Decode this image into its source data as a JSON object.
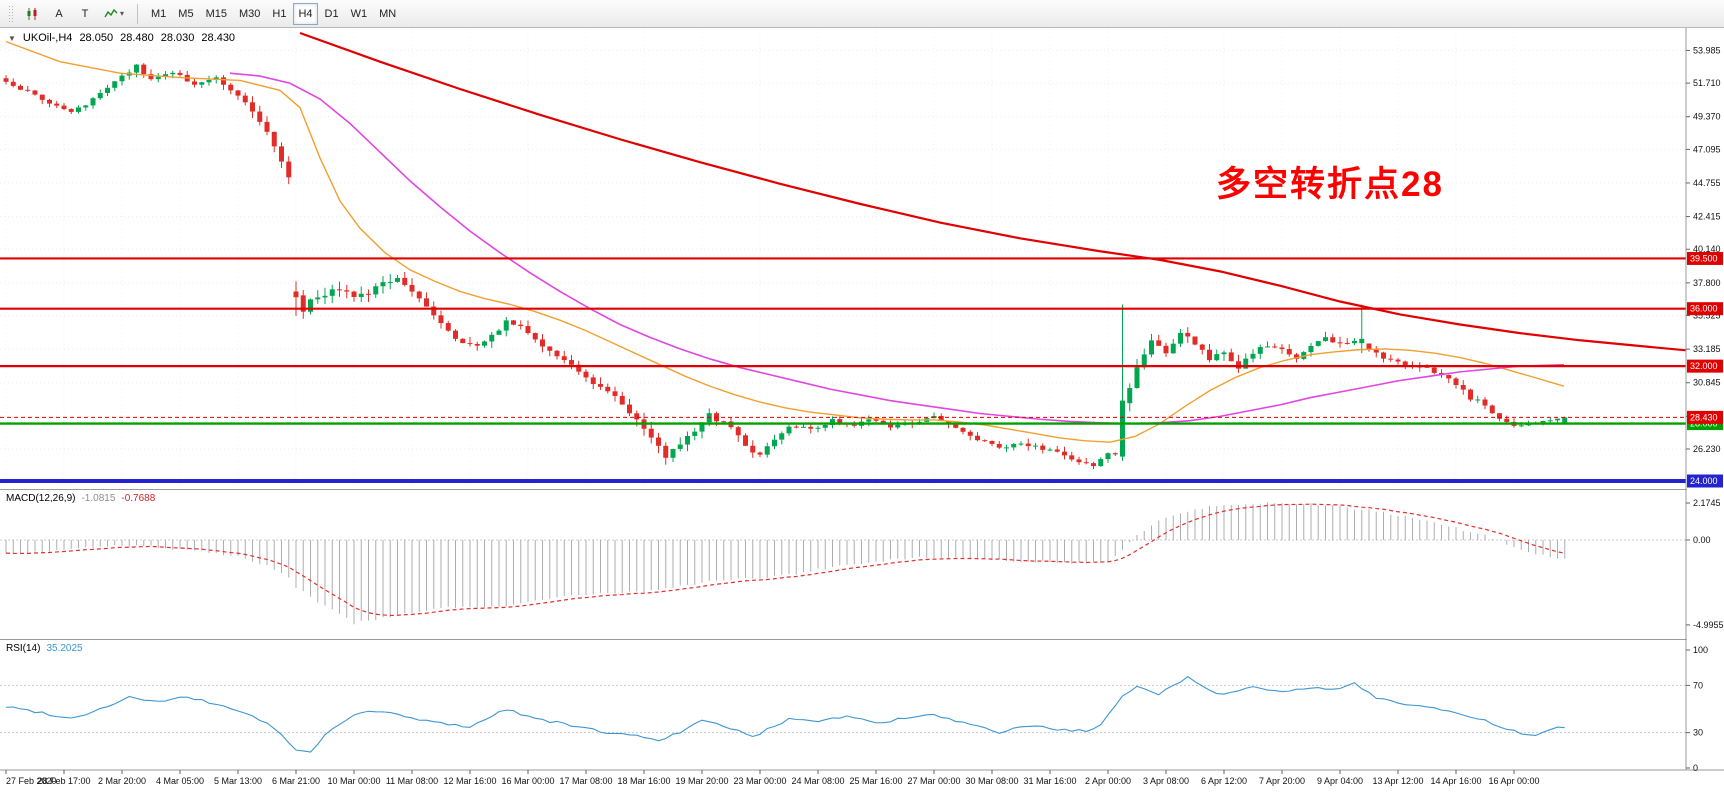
{
  "colors": {
    "candle_up": "#00A650",
    "candle_down": "#E22C28",
    "ma_fast": "#F0A030",
    "ma_mid": "#E146E1",
    "ma_long": "#E10000",
    "hline_red": "#E10000",
    "hline_green": "#00A000",
    "hline_blue": "#2323CF",
    "macd_hist": "#ADADAD",
    "macd_signal": "#E03030",
    "rsi": "#3D96D2",
    "annotation": "#FF0000"
  },
  "icons": {
    "collapse_arrow": "▼",
    "dropdown_caret": "▾"
  },
  "toolbar": {
    "buttons": [
      {
        "label": "A"
      },
      {
        "label": "T"
      }
    ],
    "timeframes": [
      "M1",
      "M5",
      "M15",
      "M30",
      "H1",
      "H4",
      "D1",
      "W1",
      "MN"
    ],
    "active_timeframe": "H4"
  },
  "chart": {
    "title": {
      "symbol": "UKOil-,H4",
      "open": "28.050",
      "high": "28.480",
      "low": "28.030",
      "close": "28.430"
    },
    "annotation": {
      "text": "多空转折点28"
    },
    "price_ticks": [
      "53.985",
      "51.710",
      "49.370",
      "47.095",
      "44.755",
      "42.415",
      "40.140",
      "37.800",
      "35.525",
      "33.185",
      "30.845",
      "28.505",
      "26.230"
    ],
    "levels": [
      {
        "value": 39.5,
        "label": "39.500",
        "color": "#E10000",
        "width": 2.2
      },
      {
        "value": 36.0,
        "label": "36.000",
        "color": "#E10000",
        "width": 2.2
      },
      {
        "value": 32.0,
        "label": "32.000",
        "color": "#E10000",
        "width": 2.2
      },
      {
        "value": 28.0,
        "label": "28.000",
        "color": "#00A000",
        "width": 2.4
      },
      {
        "value": 24.0,
        "label": "24.000",
        "color": "#2323CF",
        "width": 4
      }
    ],
    "bid": {
      "value": 28.43,
      "label": "28.430",
      "color": "#E10000"
    },
    "time_labels": [
      "27 Feb 2020",
      "28 Feb 17:00",
      "2 Mar 20:00",
      "4 Mar 05:00",
      "5 Mar 13:00",
      "6 Mar 21:00",
      "10 Mar 00:00",
      "11 Mar 08:00",
      "12 Mar 16:00",
      "16 Mar 00:00",
      "17 Mar 08:00",
      "18 Mar 16:00",
      "19 Mar 20:00",
      "23 Mar 00:00",
      "24 Mar 08:00",
      "25 Mar 16:00",
      "27 Mar 00:00",
      "30 Mar 08:00",
      "31 Mar 16:00",
      "2 Apr 00:00",
      "3 Apr 08:00",
      "6 Apr 12:00",
      "7 Apr 20:00",
      "9 Apr 04:00",
      "13 Apr 12:00",
      "14 Apr 16:00",
      "16 Apr 00:00"
    ]
  },
  "indicators": {
    "macd": {
      "label": "MACD(12,26,9)",
      "value_main": "-1.0815",
      "value_signal": "-0.7688",
      "ticks": [
        "2.1745",
        "0.00",
        "-4.9955"
      ]
    },
    "rsi": {
      "label": "RSI(14)",
      "value": "35.2025",
      "ticks": [
        "100",
        "70",
        "30",
        "0"
      ],
      "levels": [
        70,
        30
      ]
    }
  },
  "chart_data": {
    "type": "candlestick",
    "symbol": "UKOil-",
    "timeframe": "H4",
    "ohlc_current": {
      "open": 28.05,
      "high": 28.48,
      "low": 28.03,
      "close": 28.43
    },
    "price_range_visible": [
      24.0,
      55.2
    ],
    "candles_n": 216,
    "close_anchors": [
      [
        0,
        51.8
      ],
      [
        3,
        51.1
      ],
      [
        6,
        50.3
      ],
      [
        9,
        49.6
      ],
      [
        12,
        50.6
      ],
      [
        16,
        52.2
      ],
      [
        18,
        52.9
      ],
      [
        20,
        52.0
      ],
      [
        23,
        52.4
      ],
      [
        26,
        51.7
      ],
      [
        29,
        52.1
      ],
      [
        32,
        50.9
      ],
      [
        34,
        49.9
      ],
      [
        36,
        48.2
      ],
      [
        38,
        46.2
      ],
      [
        39,
        45.2
      ],
      [
        40,
        36.8
      ],
      [
        41,
        35.9
      ],
      [
        42,
        36.6
      ],
      [
        44,
        37.1
      ],
      [
        46,
        37.4
      ],
      [
        48,
        36.6
      ],
      [
        50,
        37.2
      ],
      [
        52,
        37.7
      ],
      [
        54,
        38.2
      ],
      [
        55,
        37.6
      ],
      [
        57,
        36.6
      ],
      [
        59,
        35.4
      ],
      [
        61,
        34.4
      ],
      [
        63,
        33.6
      ],
      [
        65,
        33.3
      ],
      [
        67,
        34.3
      ],
      [
        69,
        35.0
      ],
      [
        71,
        34.9
      ],
      [
        73,
        33.9
      ],
      [
        75,
        33.0
      ],
      [
        77,
        32.4
      ],
      [
        79,
        31.6
      ],
      [
        82,
        30.5
      ],
      [
        85,
        29.4
      ],
      [
        87,
        28.2
      ],
      [
        89,
        26.9
      ],
      [
        91,
        25.8
      ],
      [
        93,
        26.6
      ],
      [
        95,
        27.6
      ],
      [
        97,
        28.9
      ],
      [
        98,
        28.3
      ],
      [
        100,
        27.7
      ],
      [
        102,
        26.4
      ],
      [
        104,
        25.9
      ],
      [
        106,
        26.9
      ],
      [
        108,
        27.9
      ],
      [
        111,
        27.6
      ],
      [
        114,
        28.2
      ],
      [
        117,
        27.9
      ],
      [
        119,
        28.3
      ],
      [
        122,
        27.7
      ],
      [
        125,
        28.0
      ],
      [
        128,
        28.5
      ],
      [
        130,
        28.0
      ],
      [
        132,
        27.4
      ],
      [
        134,
        26.9
      ],
      [
        137,
        26.3
      ],
      [
        140,
        26.7
      ],
      [
        143,
        26.2
      ],
      [
        146,
        25.8
      ],
      [
        148,
        25.4
      ],
      [
        150,
        25.1
      ],
      [
        152,
        25.8
      ],
      [
        153,
        25.7
      ],
      [
        154,
        29.6
      ],
      [
        155,
        30.6
      ],
      [
        156,
        32.1
      ],
      [
        158,
        33.6
      ],
      [
        160,
        33.1
      ],
      [
        162,
        34.3
      ],
      [
        164,
        33.6
      ],
      [
        166,
        32.4
      ],
      [
        168,
        33.1
      ],
      [
        170,
        31.9
      ],
      [
        172,
        32.9
      ],
      [
        174,
        33.5
      ],
      [
        176,
        33.1
      ],
      [
        178,
        32.4
      ],
      [
        180,
        33.3
      ],
      [
        182,
        33.9
      ],
      [
        184,
        33.5
      ],
      [
        186,
        33.8
      ],
      [
        188,
        33.1
      ],
      [
        190,
        32.6
      ],
      [
        192,
        32.2
      ],
      [
        194,
        32.1
      ],
      [
        196,
        31.9
      ],
      [
        198,
        31.4
      ],
      [
        200,
        30.7
      ],
      [
        202,
        29.8
      ],
      [
        204,
        29.3
      ],
      [
        206,
        28.3
      ],
      [
        208,
        27.8
      ],
      [
        210,
        28.0
      ],
      [
        212,
        28.2
      ],
      [
        214,
        28.3
      ],
      [
        215,
        28.43
      ]
    ],
    "vol_anchors": [
      [
        0,
        0.5
      ],
      [
        20,
        0.55
      ],
      [
        32,
        0.7
      ],
      [
        38,
        0.9
      ],
      [
        44,
        1.0
      ],
      [
        60,
        0.95
      ],
      [
        75,
        0.8
      ],
      [
        90,
        0.85
      ],
      [
        100,
        0.8
      ],
      [
        112,
        0.55
      ],
      [
        130,
        0.55
      ],
      [
        145,
        0.6
      ],
      [
        152,
        0.7
      ],
      [
        156,
        1.1
      ],
      [
        164,
        0.9
      ],
      [
        172,
        0.7
      ],
      [
        184,
        0.7
      ],
      [
        192,
        0.6
      ],
      [
        202,
        0.6
      ],
      [
        212,
        0.35
      ],
      [
        215,
        0.3
      ]
    ],
    "special_candles": [
      [
        40,
        37.2,
        37.9,
        35.5,
        36.8
      ],
      [
        154,
        25.7,
        36.29,
        25.4,
        29.6
      ],
      [
        187,
        33.6,
        36.29,
        32.9,
        33.9
      ],
      [
        215,
        28.05,
        28.48,
        28.03,
        28.43
      ]
    ],
    "ma_fast_orange": [
      [
        6,
        54.6
      ],
      [
        60,
        53.2
      ],
      [
        120,
        52.4
      ],
      [
        180,
        52.1
      ],
      [
        240,
        51.9
      ],
      [
        280,
        51.2
      ],
      [
        300,
        50.0
      ],
      [
        320,
        46.5
      ],
      [
        340,
        43.5
      ],
      [
        360,
        41.6
      ],
      [
        385,
        39.9
      ],
      [
        410,
        38.7
      ],
      [
        435,
        37.9
      ],
      [
        460,
        37.2
      ],
      [
        485,
        36.7
      ],
      [
        510,
        36.3
      ],
      [
        535,
        35.8
      ],
      [
        560,
        35.2
      ],
      [
        585,
        34.5
      ],
      [
        610,
        33.7
      ],
      [
        635,
        32.9
      ],
      [
        660,
        32.1
      ],
      [
        685,
        31.3
      ],
      [
        710,
        30.6
      ],
      [
        735,
        30.0
      ],
      [
        760,
        29.5
      ],
      [
        785,
        29.1
      ],
      [
        810,
        28.8
      ],
      [
        835,
        28.6
      ],
      [
        860,
        28.4
      ],
      [
        885,
        28.3
      ],
      [
        910,
        28.25
      ],
      [
        935,
        28.25
      ],
      [
        960,
        28.1
      ],
      [
        985,
        27.9
      ],
      [
        1010,
        27.6
      ],
      [
        1035,
        27.3
      ],
      [
        1060,
        27.0
      ],
      [
        1085,
        26.8
      ],
      [
        1110,
        26.7
      ],
      [
        1135,
        27.1
      ],
      [
        1160,
        28.0
      ],
      [
        1185,
        29.2
      ],
      [
        1210,
        30.3
      ],
      [
        1235,
        31.2
      ],
      [
        1260,
        31.9
      ],
      [
        1285,
        32.4
      ],
      [
        1310,
        32.8
      ],
      [
        1335,
        33.0
      ],
      [
        1360,
        33.15
      ],
      [
        1385,
        33.2
      ],
      [
        1410,
        33.1
      ],
      [
        1435,
        32.9
      ],
      [
        1460,
        32.6
      ],
      [
        1485,
        32.2
      ],
      [
        1510,
        31.7
      ],
      [
        1535,
        31.2
      ],
      [
        1564,
        30.6
      ]
    ],
    "ma_mid_magenta": [
      [
        230,
        52.4
      ],
      [
        260,
        52.2
      ],
      [
        290,
        51.7
      ],
      [
        320,
        50.6
      ],
      [
        350,
        48.9
      ],
      [
        380,
        46.9
      ],
      [
        410,
        44.9
      ],
      [
        440,
        43.1
      ],
      [
        470,
        41.4
      ],
      [
        500,
        39.9
      ],
      [
        530,
        38.5
      ],
      [
        560,
        37.2
      ],
      [
        590,
        36.0
      ],
      [
        620,
        34.9
      ],
      [
        650,
        34.0
      ],
      [
        680,
        33.2
      ],
      [
        710,
        32.5
      ],
      [
        740,
        31.9
      ],
      [
        770,
        31.4
      ],
      [
        800,
        30.9
      ],
      [
        830,
        30.4
      ],
      [
        860,
        30.0
      ],
      [
        890,
        29.6
      ],
      [
        920,
        29.3
      ],
      [
        950,
        29.0
      ],
      [
        980,
        28.7
      ],
      [
        1010,
        28.5
      ],
      [
        1040,
        28.3
      ],
      [
        1070,
        28.15
      ],
      [
        1100,
        28.05
      ],
      [
        1130,
        28.0
      ],
      [
        1160,
        28.05
      ],
      [
        1190,
        28.2
      ],
      [
        1220,
        28.5
      ],
      [
        1250,
        28.9
      ],
      [
        1280,
        29.3
      ],
      [
        1310,
        29.8
      ],
      [
        1340,
        30.2
      ],
      [
        1370,
        30.6
      ],
      [
        1400,
        31.0
      ],
      [
        1430,
        31.3
      ],
      [
        1460,
        31.6
      ],
      [
        1490,
        31.8
      ],
      [
        1520,
        32.0
      ],
      [
        1564,
        32.1
      ]
    ],
    "ma_long_red": [
      [
        300,
        55.2
      ],
      [
        380,
        53.2
      ],
      [
        460,
        51.3
      ],
      [
        540,
        49.5
      ],
      [
        620,
        47.8
      ],
      [
        700,
        46.2
      ],
      [
        780,
        44.7
      ],
      [
        860,
        43.3
      ],
      [
        940,
        42.0
      ],
      [
        1020,
        40.9
      ],
      [
        1100,
        40.0
      ],
      [
        1160,
        39.4
      ],
      [
        1220,
        38.6
      ],
      [
        1280,
        37.6
      ],
      [
        1340,
        36.5
      ],
      [
        1400,
        35.6
      ],
      [
        1460,
        34.9
      ],
      [
        1520,
        34.3
      ],
      [
        1580,
        33.8
      ],
      [
        1640,
        33.4
      ],
      [
        1686,
        33.1
      ]
    ],
    "macd_anchors": [
      [
        0,
        -0.8
      ],
      [
        4,
        -0.7
      ],
      [
        8,
        -0.6
      ],
      [
        12,
        -0.45
      ],
      [
        16,
        -0.35
      ],
      [
        20,
        -0.4
      ],
      [
        24,
        -0.55
      ],
      [
        28,
        -0.7
      ],
      [
        32,
        -0.95
      ],
      [
        36,
        -1.5
      ],
      [
        39,
        -2.2
      ],
      [
        40,
        -2.8
      ],
      [
        44,
        -3.9
      ],
      [
        48,
        -4.9
      ],
      [
        52,
        -4.6
      ],
      [
        56,
        -4.25
      ],
      [
        60,
        -4.0
      ],
      [
        64,
        -3.9
      ],
      [
        68,
        -3.95
      ],
      [
        72,
        -3.7
      ],
      [
        76,
        -3.4
      ],
      [
        80,
        -3.2
      ],
      [
        84,
        -3.1
      ],
      [
        88,
        -3.05
      ],
      [
        92,
        -2.8
      ],
      [
        96,
        -2.5
      ],
      [
        100,
        -2.3
      ],
      [
        104,
        -2.25
      ],
      [
        108,
        -2.05
      ],
      [
        112,
        -1.75
      ],
      [
        116,
        -1.45
      ],
      [
        120,
        -1.25
      ],
      [
        124,
        -1.1
      ],
      [
        128,
        -1.0
      ],
      [
        132,
        -1.05
      ],
      [
        136,
        -1.15
      ],
      [
        140,
        -1.25
      ],
      [
        144,
        -1.3
      ],
      [
        148,
        -1.35
      ],
      [
        152,
        -1.25
      ],
      [
        154,
        -0.5
      ],
      [
        156,
        0.3
      ],
      [
        158,
        0.9
      ],
      [
        160,
        1.35
      ],
      [
        164,
        1.8
      ],
      [
        168,
        2.05
      ],
      [
        172,
        2.15
      ],
      [
        176,
        2.17
      ],
      [
        180,
        2.1
      ],
      [
        184,
        1.95
      ],
      [
        188,
        1.75
      ],
      [
        192,
        1.45
      ],
      [
        196,
        1.1
      ],
      [
        200,
        0.7
      ],
      [
        204,
        0.25
      ],
      [
        206,
        -0.05
      ],
      [
        208,
        -0.45
      ],
      [
        211,
        -0.85
      ],
      [
        214,
        -1.05
      ],
      [
        215,
        -1.08
      ]
    ],
    "rsi_anchors": [
      [
        0,
        52
      ],
      [
        4,
        48
      ],
      [
        9,
        42
      ],
      [
        13,
        50
      ],
      [
        17,
        60
      ],
      [
        21,
        56
      ],
      [
        25,
        60
      ],
      [
        29,
        54
      ],
      [
        33,
        47
      ],
      [
        37,
        34
      ],
      [
        40,
        15
      ],
      [
        42,
        13
      ],
      [
        44,
        28
      ],
      [
        48,
        46
      ],
      [
        52,
        48
      ],
      [
        56,
        42
      ],
      [
        60,
        38
      ],
      [
        64,
        35
      ],
      [
        69,
        50
      ],
      [
        73,
        42
      ],
      [
        78,
        36
      ],
      [
        82,
        31
      ],
      [
        86,
        28
      ],
      [
        90,
        24
      ],
      [
        93,
        30
      ],
      [
        96,
        40
      ],
      [
        100,
        34
      ],
      [
        103,
        26
      ],
      [
        108,
        42
      ],
      [
        112,
        40
      ],
      [
        116,
        44
      ],
      [
        120,
        38
      ],
      [
        124,
        42
      ],
      [
        128,
        45
      ],
      [
        132,
        38
      ],
      [
        137,
        30
      ],
      [
        141,
        36
      ],
      [
        145,
        33
      ],
      [
        149,
        31
      ],
      [
        151,
        36
      ],
      [
        154,
        60
      ],
      [
        156,
        70
      ],
      [
        159,
        63
      ],
      [
        163,
        77
      ],
      [
        166,
        66
      ],
      [
        168,
        62
      ],
      [
        172,
        70
      ],
      [
        176,
        64
      ],
      [
        180,
        68
      ],
      [
        183,
        66
      ],
      [
        186,
        72
      ],
      [
        189,
        60
      ],
      [
        192,
        55
      ],
      [
        196,
        52
      ],
      [
        200,
        46
      ],
      [
        204,
        40
      ],
      [
        207,
        33
      ],
      [
        209,
        29
      ],
      [
        211,
        27
      ],
      [
        213,
        32
      ],
      [
        215,
        35.2
      ]
    ],
    "hlines": [
      39.5,
      36.0,
      32.0,
      28.0,
      24.0
    ],
    "bid": 28.43
  }
}
